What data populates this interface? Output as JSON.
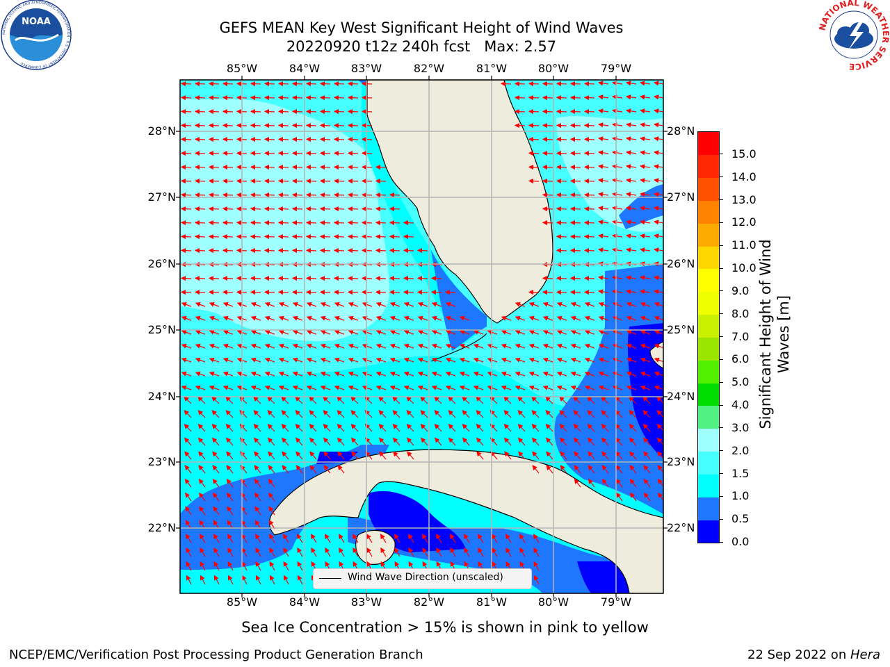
{
  "title": {
    "line1": "GEFS MEAN Key West Significant Height of Wind Waves",
    "line2": "20220920 t12z 240h fcst   Max: 2.57"
  },
  "map": {
    "lon_ticks": [
      "85°W",
      "84°W",
      "83°W",
      "82°W",
      "81°W",
      "80°W",
      "79°W"
    ],
    "lat_ticks": [
      "28°N",
      "27°N",
      "26°N",
      "25°N",
      "24°N",
      "23°N",
      "22°N"
    ],
    "legend_label": "Wind Wave Direction (unscaled)",
    "colors": {
      "land": "#eeecdc",
      "arrow": "#ff0000",
      "grid": "#b4b4b4"
    }
  },
  "colorbar": {
    "label": "Significant Height of Wind Waves [m]",
    "ticks": [
      "0.0",
      "0.5",
      "1.0",
      "1.5",
      "2.0",
      "3.0",
      "4.0",
      "5.0",
      "6.0",
      "7.0",
      "8.0",
      "9.0",
      "10.0",
      "11.0",
      "12.0",
      "13.0",
      "14.0",
      "15.0"
    ],
    "colors": [
      "#0000ff",
      "#1e78ff",
      "#00ffff",
      "#46ffff",
      "#a0ffff",
      "#50f082",
      "#00dc00",
      "#50f000",
      "#9be600",
      "#c8f000",
      "#f0ff00",
      "#ffff00",
      "#ffd700",
      "#ffaa00",
      "#ff8200",
      "#ff5000",
      "#ff2800",
      "#ff0000"
    ]
  },
  "caption": "Sea Ice Concentration > 15% is shown in pink to yellow",
  "footer": {
    "left": "NCEP/EMC/Verification Post Processing Product Generation Branch",
    "right_date": "22 Sep 2022 on ",
    "right_host": "Hera"
  },
  "logos": {
    "noaa_text": "NOAA",
    "noaa_ring": "NATIONAL OCEANIC AND ATMOSPHERIC ADMINISTRATION · U.S. DEPARTMENT OF COMMERCE",
    "nws_ring": "NATIONAL WEATHER SERVICE"
  }
}
